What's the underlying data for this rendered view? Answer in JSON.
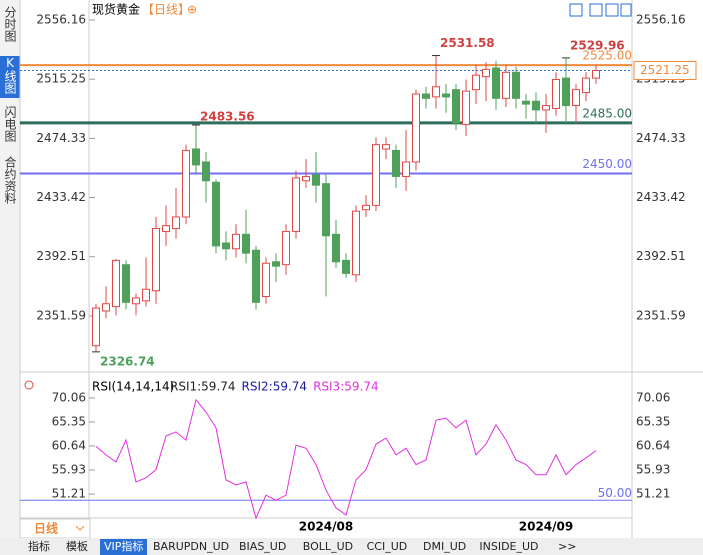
{
  "chart_data": [
    {
      "type": "candlestick",
      "title": "现货黄金",
      "subtitle": "【日线】",
      "title_icon": "⊕",
      "categories": [
        null,
        null,
        null,
        null,
        null,
        null,
        null,
        null,
        null,
        null,
        null,
        null,
        null,
        null,
        null,
        null,
        null,
        null,
        null,
        null,
        null,
        null,
        null,
        "2024/08",
        null,
        null,
        null,
        null,
        null,
        null,
        null,
        null,
        null,
        null,
        null,
        null,
        null,
        null,
        null,
        null,
        null,
        null,
        null,
        null,
        null,
        "2024/09",
        null,
        null,
        null,
        null,
        null
      ],
      "open": [
        2331,
        2355,
        2358,
        2387,
        2360,
        2362,
        2369,
        2410,
        2412,
        2420,
        2467,
        2458,
        2444,
        2402,
        2398,
        2408,
        2397,
        2365,
        2389,
        2387,
        2410,
        2445,
        2449,
        2443,
        2408,
        2390,
        2380,
        2425,
        2428,
        2467,
        2466,
        2448,
        2458,
        2505,
        2503,
        2505,
        2508,
        2484,
        2508,
        2517,
        2523,
        2502,
        2520,
        2500,
        2500,
        2494,
        2495,
        2516,
        2497,
        2506,
        2516
      ],
      "high": [
        2360,
        2372,
        2391,
        2390,
        2367,
        2392,
        2420,
        2428,
        2440,
        2470,
        2483.56,
        2465,
        2446,
        2410,
        2415,
        2425,
        2400,
        2392,
        2395,
        2415,
        2452,
        2460,
        2465,
        2450,
        2418,
        2395,
        2428,
        2435,
        2475,
        2475,
        2470,
        2480,
        2508,
        2510,
        2531.58,
        2512,
        2512,
        2515,
        2525,
        2527,
        2528,
        2525,
        2524,
        2505,
        2506,
        2505,
        2520,
        2529.96,
        2512,
        2520,
        2525
      ],
      "low": [
        2326.74,
        2350,
        2352,
        2356,
        2352,
        2358,
        2360,
        2400,
        2405,
        2415,
        2450,
        2430,
        2395,
        2390,
        2392,
        2388,
        2356,
        2360,
        2375,
        2380,
        2405,
        2440,
        2430,
        2365,
        2385,
        2378,
        2375,
        2420,
        2424,
        2460,
        2440,
        2438,
        2452,
        2495,
        2495,
        2492,
        2480,
        2476,
        2498,
        2500,
        2494,
        2496,
        2495,
        2488,
        2485,
        2478,
        2490,
        2485,
        2485,
        2500,
        2512
      ],
      "close": [
        2357,
        2360,
        2390,
        2361,
        2364,
        2370,
        2412,
        2414,
        2420,
        2466,
        2456,
        2445,
        2400,
        2398,
        2408,
        2395,
        2361,
        2388,
        2386,
        2410,
        2447,
        2448,
        2442,
        2407,
        2389,
        2381,
        2424,
        2428,
        2470,
        2470,
        2448,
        2458,
        2505,
        2502,
        2510,
        2503,
        2485,
        2507,
        2518,
        2522,
        2502,
        2520,
        2502,
        2498,
        2494,
        2497,
        2515,
        2497,
        2508,
        2516,
        2521.25
      ],
      "up_color": "#e04848",
      "down_color": "#4fa05a",
      "ylim": [
        2314.2,
        2563.07
      ],
      "yticks": [
        2556.16,
        2515.25,
        2474.33,
        2433.42,
        2392.51,
        2351.59
      ],
      "hlines": [
        {
          "value": 2525,
          "label": "2525.00",
          "color": "#f08a3c"
        },
        {
          "value": 2485,
          "label": "2485.00",
          "color": "#2e6e5e"
        },
        {
          "value": 2450,
          "label": "2450.00",
          "color": "#7070f0"
        }
      ]
    },
    {
      "type": "line",
      "title": "RSI(14,14,14)",
      "legend": [
        {
          "label": "RSI1:59.74",
          "color": "#222222"
        },
        {
          "label": "RSI2:59.74",
          "color": "#1a1aa0"
        }
      ],
      "series": [
        {
          "name": "RSI3:59.74",
          "color": "#e030e0",
          "values": [
            60.6,
            58.9,
            57.5,
            61.8,
            53.6,
            54.4,
            56,
            62.6,
            63.4,
            61.8,
            69.7,
            67.3,
            64.2,
            54,
            53,
            53.6,
            46.5,
            51,
            50,
            51,
            60.8,
            60.2,
            57,
            52,
            48.5,
            47.1,
            54,
            56,
            61,
            62.2,
            58.9,
            60.2,
            57,
            57.9,
            65.7,
            66.1,
            64.2,
            65.7,
            58.9,
            61,
            64.8,
            61.8,
            57.9,
            57,
            55,
            55,
            58.9,
            55,
            57,
            58.3,
            59.74
          ]
        }
      ],
      "ylim": [
        47.7,
        72.6
      ],
      "yticks": [
        70.06,
        65.35,
        60.64,
        55.93,
        51.21
      ],
      "ref": {
        "value": 50,
        "label": "50.00",
        "color": "#7070f0"
      }
    }
  ],
  "ui": {
    "sidebar": [
      "分时图",
      "K线图",
      "闪电图",
      "合约资料"
    ],
    "period": "日线",
    "tabs": [
      "指标",
      "模板",
      "VIP指标",
      "BARUPDN_UD",
      "BIAS_UD",
      "BOLL_UD",
      "CCI_UD",
      "DMI_UD",
      "INSIDE_UD",
      ">>"
    ]
  }
}
